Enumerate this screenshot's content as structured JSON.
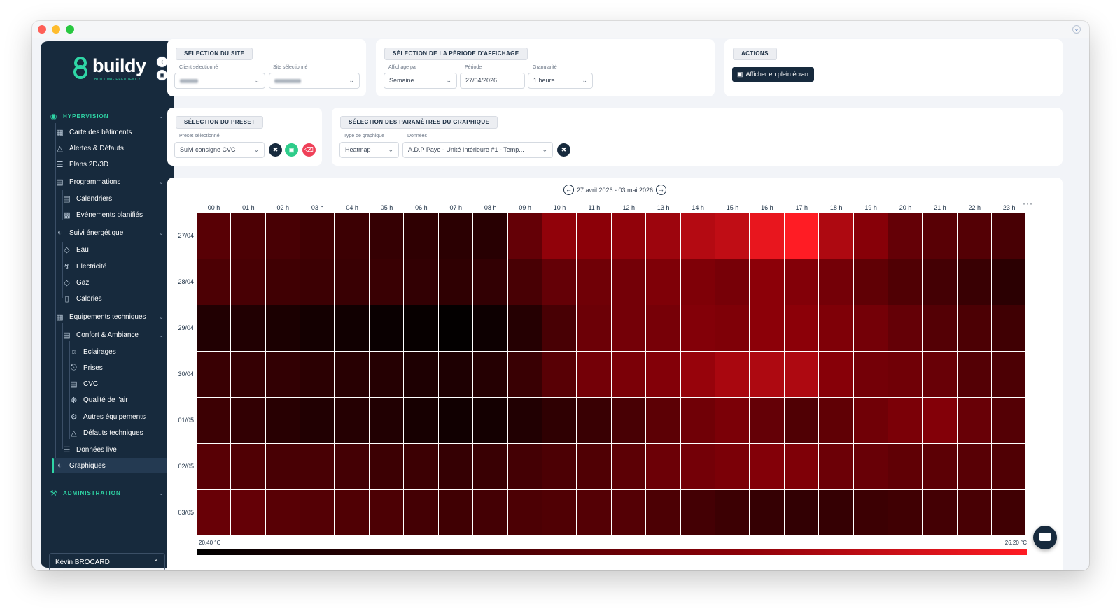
{
  "sidebar": {
    "logo": {
      "text": "buildy",
      "sub": "BUILDING EFFICIENCY"
    },
    "sections": {
      "hypervision": "HYPERVISION",
      "administration": "ADMINISTRATION"
    },
    "items": {
      "carte": "Carte des bâtiments",
      "alertes": "Alertes & Défauts",
      "plans": "Plans 2D/3D",
      "programmations": "Programmations",
      "calendriers": "Calendriers",
      "evenements": "Evénements planifiés",
      "suivi": "Suivi énergétique",
      "eau": "Eau",
      "electricite": "Electricité",
      "gaz": "Gaz",
      "calories": "Calories",
      "equipements": "Equipements techniques",
      "confort": "Confort & Ambiance",
      "eclairages": "Eclairages",
      "prises": "Prises",
      "cvc": "CVC",
      "qualite": "Qualité de l'air",
      "autres": "Autres équipements",
      "defauts": "Défauts techniques",
      "donnees_live": "Données live",
      "graphiques": "Graphiques"
    },
    "user": "Kévin BROCARD"
  },
  "site_panel": {
    "title": "SÉLECTION DU SITE",
    "client_label": "Client sélectionné",
    "site_label": "Site sélectionné"
  },
  "period_panel": {
    "title": "SÉLECTION DE LA PÉRIODE D'AFFICHAGE",
    "affichage_label": "Affichage par",
    "affichage_value": "Semaine",
    "periode_label": "Période",
    "periode_value": "27/04/2026",
    "granularite_label": "Granularité",
    "granularite_value": "1 heure"
  },
  "actions_panel": {
    "title": "ACTIONS",
    "fullscreen_label": "Afficher en plein écran"
  },
  "preset_panel": {
    "title": "SÉLECTION DU PRESET",
    "preset_label": "Preset sélectionné",
    "preset_value": "Suivi consigne CVC"
  },
  "params_panel": {
    "title": "SÉLECTION DES PARAMÈTRES DU GRAPHIQUE",
    "type_label": "Type de graphique",
    "type_value": "Heatmap",
    "donnees_label": "Données",
    "donnees_value": "A.D.P Paye - Unité Intérieure #1 - Temp..."
  },
  "chart": {
    "period": "27 avril 2026 - 03 mai 2026",
    "scale_min": "20.40 °C",
    "scale_max": "26.20 °C"
  },
  "colors": {
    "sidebar_bg": "#172a3d",
    "accent": "#2fd6a6",
    "save_button": "#2ecc8a",
    "delete_button": "#ef4058"
  },
  "chart_data": {
    "type": "heatmap",
    "x": [
      "00 h",
      "01 h",
      "02 h",
      "03 h",
      "04 h",
      "05 h",
      "06 h",
      "07 h",
      "08 h",
      "09 h",
      "10 h",
      "11 h",
      "12 h",
      "13 h",
      "14 h",
      "15 h",
      "16 h",
      "17 h",
      "18 h",
      "19 h",
      "20 h",
      "21 h",
      "22 h",
      "23 h"
    ],
    "y": [
      "27/04",
      "28/04",
      "29/04",
      "30/04",
      "01/05",
      "02/05",
      "03/05"
    ],
    "unit": "°C",
    "zlim": [
      20.4,
      26.2
    ],
    "values": [
      [
        22.9,
        22.6,
        22.5,
        22.3,
        22.2,
        22.0,
        21.8,
        21.7,
        21.6,
        23.2,
        24.3,
        24.2,
        24.3,
        24.5,
        24.9,
        25.1,
        25.8,
        26.2,
        24.8,
        24.1,
        23.2,
        22.9,
        22.8,
        22.5
      ],
      [
        22.6,
        22.5,
        22.3,
        22.2,
        22.1,
        22.1,
        21.9,
        21.8,
        21.9,
        22.5,
        23.2,
        23.5,
        23.6,
        23.9,
        23.9,
        23.7,
        24.2,
        24.0,
        23.6,
        23.1,
        22.7,
        22.4,
        22.1,
        21.7
      ],
      [
        21.4,
        21.4,
        21.2,
        21.0,
        20.9,
        20.7,
        20.6,
        20.5,
        20.8,
        21.5,
        22.5,
        23.4,
        23.6,
        23.7,
        24.0,
        23.9,
        24.2,
        24.2,
        23.9,
        23.6,
        23.2,
        22.8,
        22.6,
        22.3
      ],
      [
        22.1,
        22.0,
        21.9,
        21.7,
        21.6,
        21.5,
        21.3,
        21.3,
        21.5,
        22.1,
        22.9,
        23.6,
        23.8,
        24.0,
        24.4,
        24.7,
        24.8,
        24.8,
        24.1,
        23.6,
        23.5,
        23.3,
        22.8,
        22.6
      ],
      [
        22.2,
        21.9,
        21.6,
        21.4,
        21.5,
        21.4,
        21.1,
        20.9,
        21.0,
        21.4,
        21.8,
        22.1,
        22.5,
        23.0,
        23.5,
        23.8,
        23.2,
        22.7,
        23.1,
        23.5,
        23.8,
        24.0,
        23.3,
        22.8
      ],
      [
        22.9,
        22.7,
        22.5,
        22.5,
        22.4,
        22.2,
        22.2,
        22.0,
        22.1,
        22.4,
        22.6,
        22.7,
        23.0,
        23.4,
        23.6,
        23.8,
        24.0,
        23.9,
        23.4,
        23.3,
        23.1,
        23.0,
        22.9,
        22.7
      ],
      [
        23.3,
        23.2,
        22.9,
        22.8,
        22.7,
        22.6,
        22.4,
        22.3,
        22.4,
        22.6,
        22.7,
        22.8,
        22.8,
        22.6,
        22.4,
        22.2,
        22.0,
        21.9,
        22.0,
        22.2,
        22.3,
        22.4,
        22.5,
        22.3
      ]
    ]
  }
}
